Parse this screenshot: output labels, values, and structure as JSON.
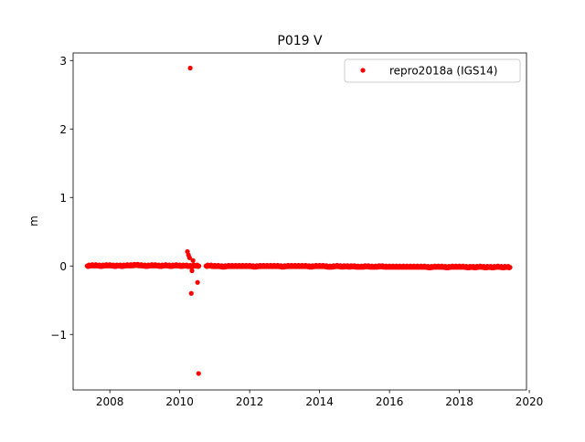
{
  "chart_data": {
    "type": "scatter",
    "title": "P019 V",
    "xlabel": "",
    "ylabel": "m",
    "xlim": [
      2006.95,
      2019.92
    ],
    "ylim": [
      -1.81,
      3.11
    ],
    "xticks": [
      2008,
      2010,
      2012,
      2014,
      2016,
      2018,
      2020
    ],
    "xtick_labels": [
      "2008",
      "2010",
      "2012",
      "2014",
      "2016",
      "2018",
      "2020"
    ],
    "yticks": [
      3,
      2,
      1,
      0,
      -1
    ],
    "ytick_labels": [
      "3",
      "2",
      "1",
      "0",
      "−1"
    ],
    "grid": false,
    "legend_position": "top-right",
    "series": [
      {
        "name": "repro2018a (IGS14)",
        "color": "#ff0000",
        "marker": "circle",
        "x": [
          2007.35,
          2007.45,
          2007.55,
          2007.65,
          2007.75,
          2007.85,
          2007.95,
          2008.05,
          2008.15,
          2008.25,
          2008.35,
          2008.45,
          2008.55,
          2008.65,
          2008.75,
          2008.85,
          2008.95,
          2009.05,
          2009.15,
          2009.25,
          2009.35,
          2009.45,
          2009.55,
          2009.65,
          2009.75,
          2009.85,
          2009.95,
          2010.05,
          2010.15,
          2010.25,
          2010.35,
          2010.45,
          2010.55,
          2010.75,
          2010.85,
          2010.95,
          2011.05,
          2011.15,
          2011.25,
          2011.35,
          2011.45,
          2011.55,
          2011.65,
          2011.75,
          2011.85,
          2011.95,
          2012.05,
          2012.15,
          2012.25,
          2012.35,
          2012.45,
          2012.55,
          2012.65,
          2012.75,
          2012.85,
          2012.95,
          2013.05,
          2013.15,
          2013.25,
          2013.35,
          2013.45,
          2013.55,
          2013.65,
          2013.75,
          2013.85,
          2013.95,
          2014.05,
          2014.15,
          2014.25,
          2014.35,
          2014.45,
          2014.55,
          2014.65,
          2014.75,
          2014.85,
          2014.95,
          2015.05,
          2015.15,
          2015.25,
          2015.35,
          2015.45,
          2015.55,
          2015.65,
          2015.75,
          2015.85,
          2015.95,
          2016.05,
          2016.15,
          2016.25,
          2016.35,
          2016.45,
          2016.55,
          2016.65,
          2016.75,
          2016.85,
          2016.95,
          2017.05,
          2017.15,
          2017.25,
          2017.35,
          2017.45,
          2017.55,
          2017.65,
          2017.75,
          2017.85,
          2017.95,
          2018.05,
          2018.15,
          2018.25,
          2018.35,
          2018.45,
          2018.55,
          2018.65,
          2018.75,
          2018.85,
          2018.95,
          2019.05,
          2019.15,
          2019.25,
          2019.35,
          2019.45,
          2010.3,
          2010.22,
          2010.25,
          2010.28,
          2010.35,
          2010.38,
          2010.51,
          2010.33,
          2010.54
        ],
        "y": [
          0.0,
          0.01,
          0.01,
          0.01,
          0.0,
          0.01,
          0.01,
          0.01,
          0.0,
          0.01,
          0.0,
          0.01,
          0.01,
          0.01,
          0.02,
          0.01,
          0.01,
          0.0,
          0.01,
          0.01,
          0.01,
          0.0,
          0.01,
          0.01,
          0.0,
          0.01,
          0.01,
          0.0,
          0.01,
          0.0,
          0.0,
          0.01,
          0.0,
          0.0,
          0.01,
          0.0,
          0.0,
          0.0,
          -0.01,
          0.0,
          0.0,
          0.0,
          0.0,
          0.0,
          0.0,
          0.0,
          0.0,
          -0.01,
          0.0,
          0.0,
          0.0,
          0.0,
          0.0,
          0.0,
          0.0,
          -0.01,
          0.0,
          0.0,
          0.0,
          0.0,
          0.0,
          0.0,
          0.0,
          -0.01,
          0.0,
          0.0,
          0.0,
          0.0,
          -0.01,
          -0.01,
          0.0,
          0.0,
          -0.01,
          0.0,
          -0.01,
          0.0,
          -0.01,
          -0.01,
          -0.01,
          0.0,
          -0.01,
          -0.01,
          -0.01,
          0.0,
          -0.01,
          -0.01,
          -0.01,
          -0.01,
          -0.01,
          -0.01,
          -0.01,
          -0.01,
          -0.01,
          -0.01,
          -0.01,
          -0.01,
          -0.01,
          -0.02,
          -0.01,
          -0.01,
          -0.01,
          -0.01,
          -0.02,
          -0.01,
          -0.01,
          -0.01,
          -0.01,
          -0.01,
          -0.02,
          -0.01,
          -0.02,
          -0.01,
          -0.01,
          -0.02,
          -0.01,
          -0.02,
          -0.01,
          -0.01,
          -0.02,
          -0.01,
          -0.02,
          2.89,
          0.21,
          0.16,
          0.12,
          -0.07,
          0.08,
          -0.24,
          -0.4,
          -1.57
        ]
      }
    ]
  }
}
